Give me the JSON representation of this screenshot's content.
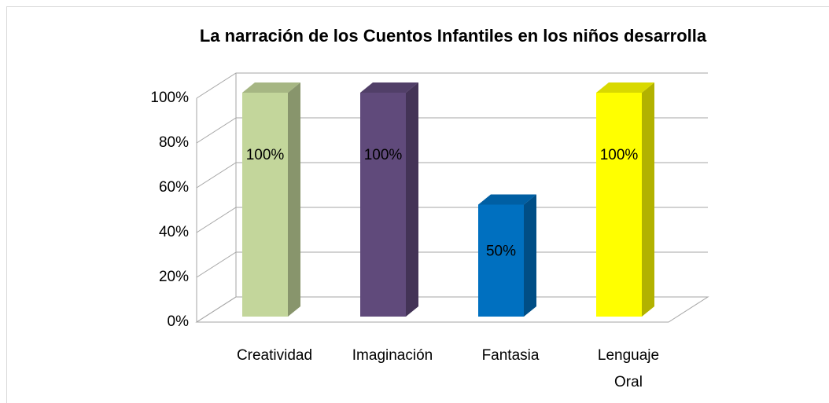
{
  "chart_data": {
    "type": "bar3d",
    "title": "La narración de los Cuentos Infantiles en los niños desarrolla",
    "categories": [
      "Creatividad",
      "Imaginación",
      "Fantasia",
      "Lenguaje Oral"
    ],
    "values": [
      100,
      100,
      50,
      100
    ],
    "value_labels": [
      "100%",
      "100%",
      "50%",
      "100%"
    ],
    "colors": [
      "#c3d69b",
      "#604a7b",
      "#0070c0",
      "#ffff00"
    ],
    "ylim": [
      0,
      100
    ],
    "yticks": [
      {
        "value": 0,
        "label": "0%"
      },
      {
        "value": 20,
        "label": "20%"
      },
      {
        "value": 40,
        "label": "40%"
      },
      {
        "value": 60,
        "label": "60%"
      },
      {
        "value": 80,
        "label": "80%"
      },
      {
        "value": 100,
        "label": "100%"
      }
    ],
    "grid": true
  }
}
